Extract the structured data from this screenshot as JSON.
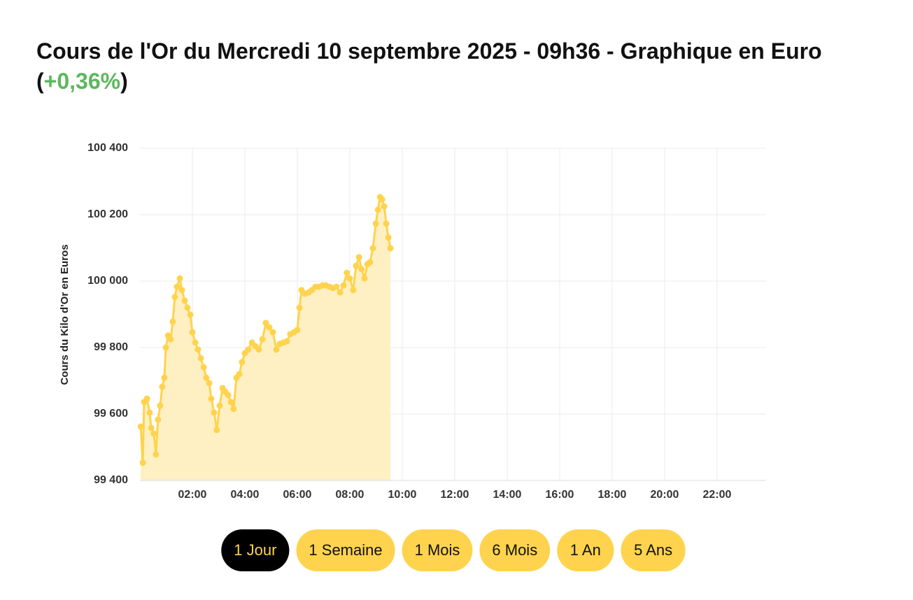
{
  "chart_data": {
    "type": "area",
    "title": "Cours de l'Or du Mercredi 10 septembre 2025 - 09h36 - Graphique en Euro",
    "change": "+0,36%",
    "change_brackets": [
      "(",
      ")"
    ],
    "change_color": "#5cb85c",
    "y_label": "Cours du Kilo d'Or en Euros",
    "color": "#ffd34d",
    "fill": "#fff0c4",
    "grid": true,
    "xlim": [
      0,
      24
    ],
    "xticks": [
      {
        "value": 2,
        "label": "02:00"
      },
      {
        "value": 4,
        "label": "04:00"
      },
      {
        "value": 6,
        "label": "06:00"
      },
      {
        "value": 8,
        "label": "08:00"
      },
      {
        "value": 10,
        "label": "10:00"
      },
      {
        "value": 12,
        "label": "12:00"
      },
      {
        "value": 14,
        "label": "14:00"
      },
      {
        "value": 16,
        "label": "16:00"
      },
      {
        "value": 18,
        "label": "18:00"
      },
      {
        "value": 20,
        "label": "20:00"
      },
      {
        "value": 22,
        "label": "22:00"
      }
    ],
    "ylim": [
      99400,
      100400
    ],
    "yticks": [
      {
        "value": 99400,
        "label": "99 400"
      },
      {
        "value": 99600,
        "label": "99 600"
      },
      {
        "value": 99800,
        "label": "99 800"
      },
      {
        "value": 100000,
        "label": "100 000"
      },
      {
        "value": 100200,
        "label": "100 200"
      },
      {
        "value": 100400,
        "label": "100 400"
      }
    ],
    "x": [
      0.03,
      0.11,
      0.16,
      0.27,
      0.37,
      0.43,
      0.53,
      0.61,
      0.69,
      0.77,
      0.85,
      0.93,
      0.99,
      1.07,
      1.17,
      1.25,
      1.33,
      1.41,
      1.52,
      1.6,
      1.71,
      1.81,
      1.92,
      2.0,
      2.11,
      2.21,
      2.32,
      2.43,
      2.53,
      2.64,
      2.72,
      2.83,
      2.93,
      3.04,
      3.15,
      3.25,
      3.36,
      3.47,
      3.57,
      3.68,
      3.79,
      3.89,
      4.0,
      4.13,
      4.27,
      4.4,
      4.53,
      4.67,
      4.8,
      4.93,
      5.07,
      5.2,
      5.33,
      5.47,
      5.6,
      5.73,
      5.87,
      6.0,
      6.08,
      6.16,
      6.29,
      6.43,
      6.56,
      6.69,
      6.83,
      6.96,
      7.09,
      7.23,
      7.36,
      7.49,
      7.63,
      7.76,
      7.89,
      8.0,
      8.13,
      8.24,
      8.35,
      8.45,
      8.56,
      8.67,
      8.77,
      8.88,
      8.99,
      9.07,
      9.15,
      9.23,
      9.31,
      9.39,
      9.47,
      9.55
    ],
    "values": [
      99562,
      99453,
      99636,
      99646,
      99604,
      99558,
      99541,
      99478,
      99583,
      99625,
      99682,
      99709,
      99800,
      99836,
      99825,
      99878,
      99952,
      99983,
      100008,
      99973,
      99941,
      99920,
      99899,
      99846,
      99815,
      99794,
      99768,
      99741,
      99709,
      99693,
      99646,
      99604,
      99552,
      99625,
      99678,
      99667,
      99657,
      99636,
      99615,
      99709,
      99720,
      99756,
      99783,
      99794,
      99815,
      99804,
      99794,
      99825,
      99874,
      99861,
      99846,
      99794,
      99811,
      99815,
      99819,
      99840,
      99846,
      99853,
      99920,
      99973,
      99962,
      99966,
      99973,
      99983,
      99983,
      99987,
      99987,
      99983,
      99979,
      99983,
      99966,
      99987,
      100025,
      100008,
      99973,
      100046,
      100072,
      100036,
      100008,
      100051,
      100057,
      100099,
      100173,
      100215,
      100253,
      100246,
      100225,
      100173,
      100131,
      100099
    ],
    "buttons": [
      "1 Jour",
      "1 Semaine",
      "1 Mois",
      "6 Mois",
      "1 An",
      "5 Ans"
    ],
    "active_button": 0
  }
}
